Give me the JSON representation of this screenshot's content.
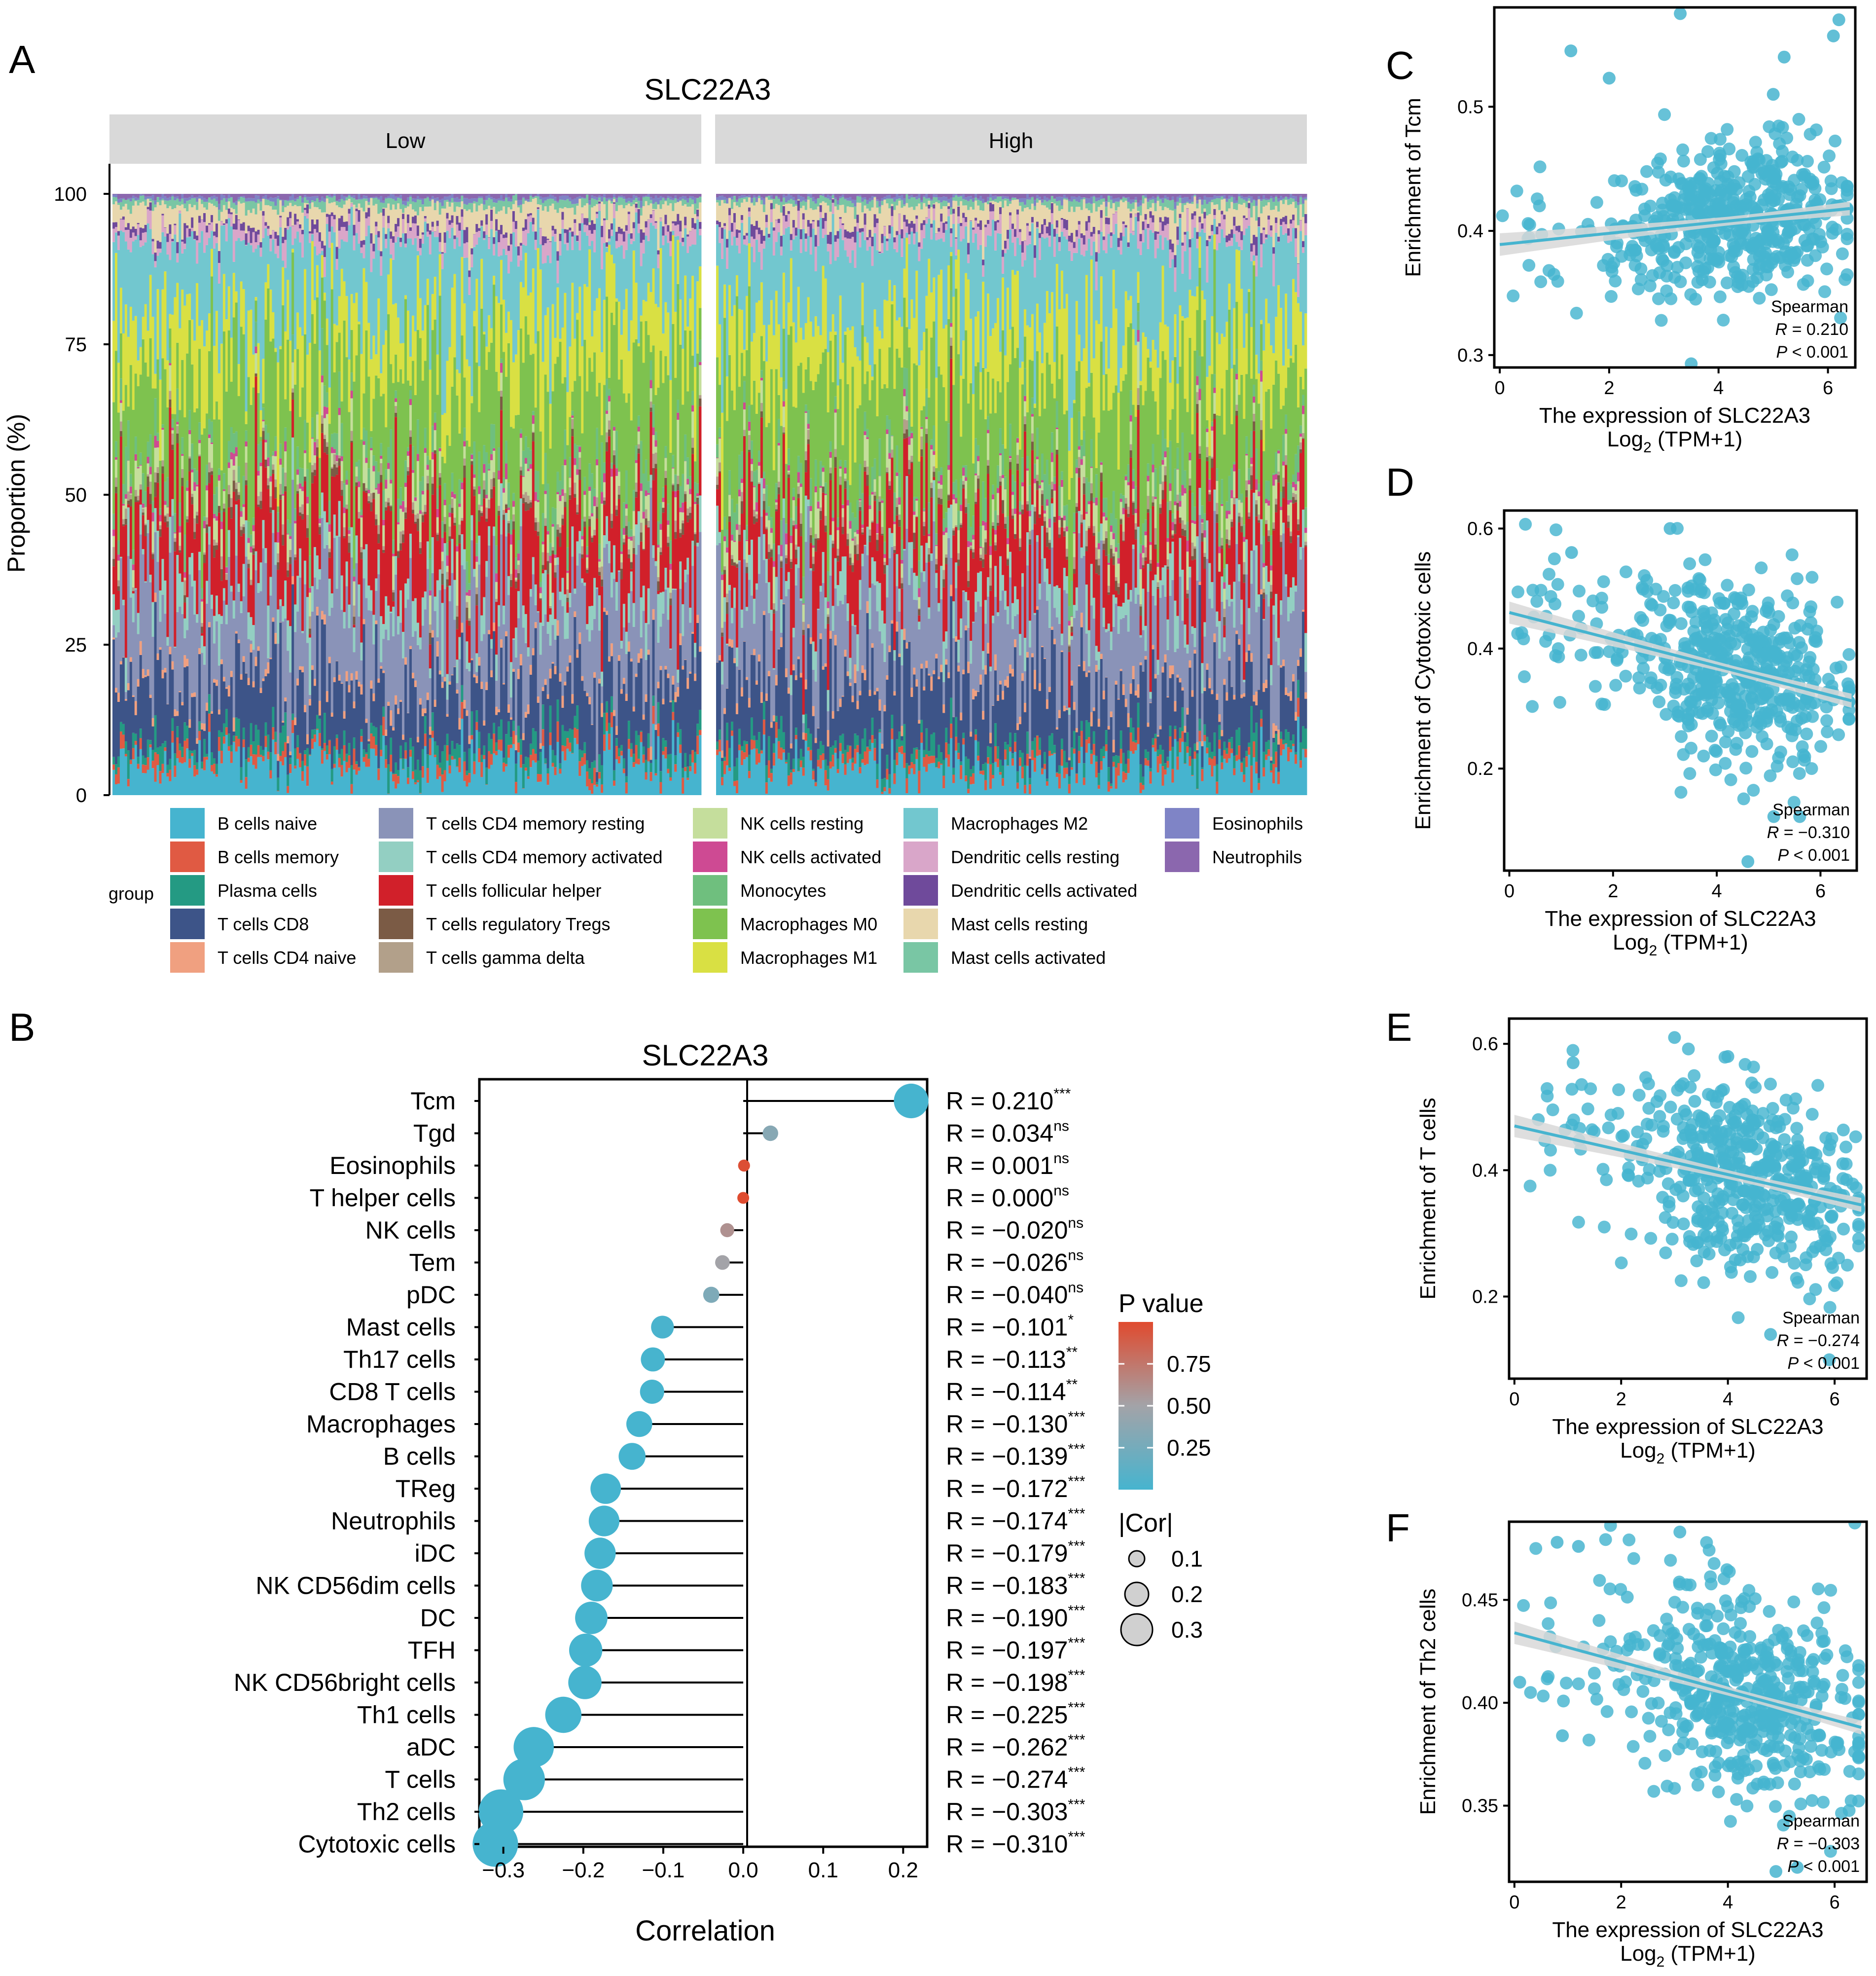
{
  "panels": {
    "A": "A",
    "B": "B",
    "C": "C",
    "D": "D",
    "E": "E",
    "F": "F"
  },
  "colors": {
    "teal": "#46B4CF",
    "strip": "#D9D9D9",
    "ci_band": "#D8D8D8"
  },
  "chart_data": [
    {
      "id": "A",
      "type": "bar",
      "subtype": "stacked-proportion",
      "title": "SLC22A3",
      "facets": [
        "Low",
        "High"
      ],
      "ylabel": "Proportion (%)",
      "ylim": [
        0,
        100
      ],
      "yticks": [
        "0",
        "25",
        "50",
        "75",
        "100"
      ],
      "legend_title": "group",
      "legend": [
        {
          "name": "B cells naive",
          "color": "#46B4CF"
        },
        {
          "name": "B cells memory",
          "color": "#E05A43"
        },
        {
          "name": "Plasma cells",
          "color": "#249A83"
        },
        {
          "name": "T cells CD8",
          "color": "#3D5488"
        },
        {
          "name": "T cells CD4 naive",
          "color": "#F0A080"
        },
        {
          "name": "T cells CD4 memory resting",
          "color": "#8A93B8"
        },
        {
          "name": "T cells CD4 memory activated",
          "color": "#93CFC2"
        },
        {
          "name": "T cells follicular helper",
          "color": "#D1202A"
        },
        {
          "name": "T cells regulatory Tregs",
          "color": "#7B5B45"
        },
        {
          "name": "T cells gamma delta",
          "color": "#B2A08A"
        },
        {
          "name": "NK cells resting",
          "color": "#C5DE9C"
        },
        {
          "name": "NK cells activated",
          "color": "#CE4A93"
        },
        {
          "name": "Monocytes",
          "color": "#6FBF7E"
        },
        {
          "name": "Macrophages M0",
          "color": "#7EC24F"
        },
        {
          "name": "Macrophages M1",
          "color": "#D9E043"
        },
        {
          "name": "Macrophages M2",
          "color": "#72C7CF"
        },
        {
          "name": "Dendritic cells resting",
          "color": "#D9A6C9"
        },
        {
          "name": "Dendritic cells activated",
          "color": "#6F4A9B"
        },
        {
          "name": "Mast cells resting",
          "color": "#E8D7AD"
        },
        {
          "name": "Mast cells activated",
          "color": "#79C6A4"
        },
        {
          "name": "Eosinophils",
          "color": "#7F84C6"
        },
        {
          "name": "Neutrophils",
          "color": "#8B67AE"
        }
      ],
      "mean_proportions": [
        5,
        1.5,
        2,
        10,
        1,
        12,
        4,
        10,
        1,
        1,
        3,
        0.8,
        3,
        16,
        10,
        12,
        2,
        1,
        3,
        1,
        0.5,
        0.5
      ]
    },
    {
      "id": "B",
      "type": "scatter",
      "subtype": "lollipop",
      "title": "SLC22A3",
      "xlabel": "Correlation",
      "xlim": [
        -0.33,
        0.23
      ],
      "xticks": [
        "−0.3",
        "−0.2",
        "−0.1",
        "0.0",
        "0.1",
        "0.2"
      ],
      "xtick_values": [
        -0.3,
        -0.2,
        -0.1,
        0.0,
        0.1,
        0.2
      ],
      "categories": [
        "Tcm",
        "Tgd",
        "Eosinophils",
        "T helper cells",
        "NK cells",
        "Tem",
        "pDC",
        "Mast cells",
        "Th17 cells",
        "CD8 T cells",
        "Macrophages",
        "B cells",
        "TReg",
        "Neutrophils",
        "iDC",
        "NK CD56dim cells",
        "DC",
        "TFH",
        "NK CD56bright cells",
        "Th1 cells",
        "aDC",
        "T cells",
        "Th2 cells",
        "Cytotoxic cells"
      ],
      "values": [
        0.21,
        0.034,
        0.001,
        0.0,
        -0.02,
        -0.026,
        -0.04,
        -0.101,
        -0.113,
        -0.114,
        -0.13,
        -0.139,
        -0.172,
        -0.174,
        -0.179,
        -0.183,
        -0.19,
        -0.197,
        -0.198,
        -0.225,
        -0.262,
        -0.274,
        -0.303,
        -0.31
      ],
      "r_labels": [
        "R = 0.210",
        "R = 0.034",
        "R = 0.001",
        "R = 0.000",
        "R = −0.020",
        "R = −0.026",
        "R = −0.040",
        "R = −0.101",
        "R = −0.113",
        "R = −0.114",
        "R = −0.130",
        "R = −0.139",
        "R = −0.172",
        "R = −0.174",
        "R = −0.179",
        "R = −0.183",
        "R = −0.190",
        "R = −0.197",
        "R = −0.198",
        "R = −0.225",
        "R = −0.262",
        "R = −0.274",
        "R = −0.303",
        "R = −0.310"
      ],
      "significance": [
        "***",
        "ns",
        "ns",
        "ns",
        "ns",
        "ns",
        "ns",
        "*",
        "**",
        "**",
        "***",
        "***",
        "***",
        "***",
        "***",
        "***",
        "***",
        "***",
        "***",
        "***",
        "***",
        "***",
        "***",
        "***"
      ],
      "p_values": [
        0.0,
        0.35,
        0.97,
        0.99,
        0.6,
        0.5,
        0.3,
        0.02,
        0.008,
        0.007,
        0.0008,
        0.0004,
        0.0,
        0.0,
        0.0,
        0.0,
        0.0,
        0.0,
        0.0,
        0.0,
        0.0,
        0.0,
        0.0,
        0.0
      ],
      "legend_color": {
        "title": "P value",
        "ticks": [
          "0.75",
          "0.50",
          "0.25"
        ],
        "tick_values": [
          0.75,
          0.5,
          0.25
        ],
        "low": "#46B4CF",
        "mid": "#A3A3A8",
        "high": "#E04A2E"
      },
      "legend_size": {
        "title": "|Cor|",
        "labels": [
          "0.1",
          "0.2",
          "0.3"
        ],
        "values": [
          0.1,
          0.2,
          0.3
        ]
      }
    },
    {
      "id": "C",
      "type": "scatter",
      "ylabel": "Enrichment of Tcm",
      "xlabel": "The expression of SLC22A3",
      "xlabel2": "Log",
      "xlabel2_sub": "2",
      "xlabel2_rest": " (TPM+1)",
      "xlim": [
        -0.1,
        6.5
      ],
      "ylim": [
        0.29,
        0.58
      ],
      "xticks": [
        "0",
        "2",
        "4",
        "6"
      ],
      "xtick_values": [
        0,
        2,
        4,
        6
      ],
      "yticks": [
        "0.3",
        "0.4",
        "0.5"
      ],
      "ytick_values": [
        0.3,
        0.4,
        0.5
      ],
      "fit": {
        "x": [
          0,
          6.4
        ],
        "y": [
          0.389,
          0.418
        ]
      },
      "stats": {
        "method": "Spearman",
        "r_label": "R",
        "r_value": " = 0.210",
        "p_label": "P",
        "p_value": " < 0.001"
      },
      "n": 500,
      "x_mean": 4.3,
      "x_sd": 1.15,
      "y_sd": 0.03,
      "outliers": [
        [
          3.3,
          0.575
        ],
        [
          6.2,
          0.57
        ],
        [
          6.1,
          0.557
        ],
        [
          1.3,
          0.545
        ],
        [
          5.2,
          0.54
        ],
        [
          2.0,
          0.523
        ],
        [
          5.0,
          0.51
        ],
        [
          3.5,
          0.293
        ]
      ]
    },
    {
      "id": "D",
      "type": "scatter",
      "ylabel": "Enrichment of Cytotoxic cells",
      "xlabel": "The expression of SLC22A3",
      "xlabel2": "Log",
      "xlabel2_sub": "2",
      "xlabel2_rest": " (TPM+1)",
      "xlim": [
        -0.1,
        6.7
      ],
      "ylim": [
        0.03,
        0.63
      ],
      "xticks": [
        "0",
        "2",
        "4",
        "6"
      ],
      "xtick_values": [
        0,
        2,
        4,
        6
      ],
      "yticks": [
        "0.2",
        "0.4",
        "0.6"
      ],
      "ytick_values": [
        0.2,
        0.4,
        0.6
      ],
      "fit": {
        "x": [
          0,
          6.6
        ],
        "y": [
          0.46,
          0.313
        ]
      },
      "stats": {
        "method": "Spearman",
        "r_label": "R",
        "r_value": " = −0.310",
        "p_label": "P",
        "p_value": " < 0.001"
      },
      "n": 500,
      "x_mean": 4.4,
      "x_sd": 1.15,
      "y_sd": 0.075,
      "outliers": [
        [
          3.1,
          0.6
        ],
        [
          4.6,
          0.045
        ],
        [
          5.1,
          0.12
        ],
        [
          5.6,
          0.12
        ],
        [
          1.2,
          0.56
        ],
        [
          5.1,
          0.44
        ]
      ]
    },
    {
      "id": "E",
      "type": "scatter",
      "ylabel": "Enrichment of T cells",
      "xlabel": "The expression of SLC22A3",
      "xlabel2": "Log",
      "xlabel2_sub": "2",
      "xlabel2_rest": " (TPM+1)",
      "xlim": [
        -0.1,
        6.6
      ],
      "ylim": [
        0.07,
        0.64
      ],
      "xticks": [
        "0",
        "2",
        "4",
        "6"
      ],
      "xtick_values": [
        0,
        2,
        4,
        6
      ],
      "yticks": [
        "0.2",
        "0.4",
        "0.6"
      ],
      "ytick_values": [
        0.2,
        0.4,
        0.6
      ],
      "fit": {
        "x": [
          0,
          6.5
        ],
        "y": [
          0.47,
          0.345
        ]
      },
      "stats": {
        "method": "Spearman",
        "r_label": "R",
        "r_value": " = −0.274",
        "p_label": "P",
        "p_value": " < 0.001"
      },
      "n": 500,
      "x_mean": 4.4,
      "x_sd": 1.15,
      "y_sd": 0.075,
      "outliers": [
        [
          3.0,
          0.61
        ],
        [
          4.0,
          0.58
        ],
        [
          1.1,
          0.57
        ],
        [
          5.9,
          0.1
        ],
        [
          4.8,
          0.14
        ]
      ]
    },
    {
      "id": "F",
      "type": "scatter",
      "ylabel": "Enrichment of Th2 cells",
      "xlabel": "The expression of SLC22A3",
      "xlabel2": "Log",
      "xlabel2_sub": "2",
      "xlabel2_rest": " (TPM+1)",
      "xlim": [
        -0.1,
        6.6
      ],
      "ylim": [
        0.313,
        0.488
      ],
      "xticks": [
        "0",
        "2",
        "4",
        "6"
      ],
      "xtick_values": [
        0,
        2,
        4,
        6
      ],
      "yticks": [
        "0.35",
        "0.40",
        "0.45"
      ],
      "ytick_values": [
        0.35,
        0.4,
        0.45
      ],
      "fit": {
        "x": [
          0,
          6.5
        ],
        "y": [
          0.434,
          0.388
        ]
      },
      "stats": {
        "method": "Spearman",
        "r_label": "R",
        "r_value": " = −0.303",
        "p_label": "P",
        "p_value": " < 0.001"
      },
      "n": 500,
      "x_mean": 4.4,
      "x_sd": 1.15,
      "y_sd": 0.023,
      "outliers": [
        [
          0.8,
          0.478
        ],
        [
          1.2,
          0.476
        ],
        [
          3.1,
          0.483
        ],
        [
          4.9,
          0.318
        ],
        [
          5.3,
          0.32
        ],
        [
          0.1,
          0.41
        ],
        [
          0.9,
          0.384
        ]
      ]
    }
  ]
}
